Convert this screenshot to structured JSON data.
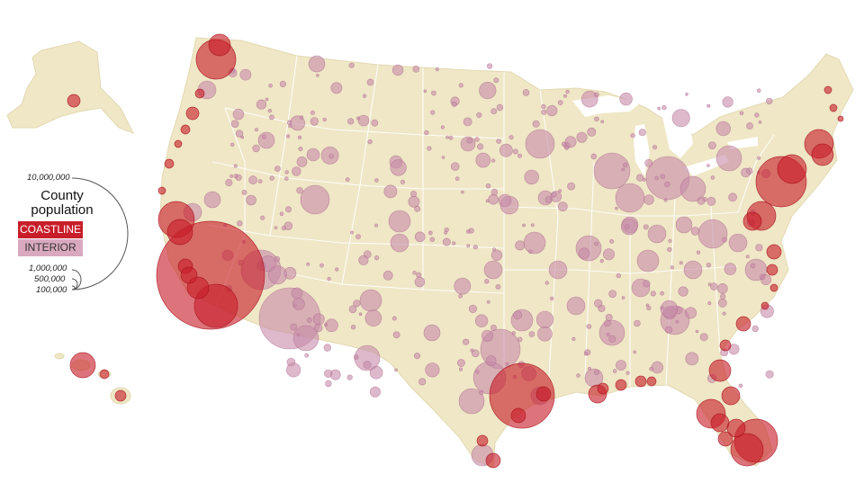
{
  "legend": {
    "scale_top": "10,000,000",
    "title_line1": "County",
    "title_line2": "population",
    "coastline": "COASTLINE",
    "interior": "INTERIOR",
    "scale_1m": "1,000,000",
    "scale_500k": "500,000",
    "scale_100k": "100,000"
  },
  "colors": {
    "land": "#efe7c6",
    "border": "#ffffff",
    "coastline": "#c81e2a",
    "interior": "#c68aa8"
  }
}
